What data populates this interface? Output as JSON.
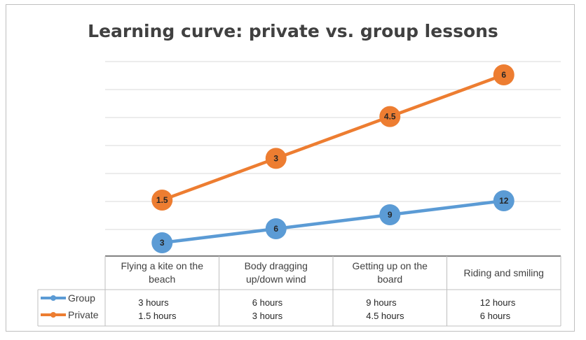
{
  "chart_data": {
    "type": "line",
    "title": "Learning curve: private vs. group lessons",
    "categories": [
      [
        "Flying a kite on the",
        "beach"
      ],
      [
        "Body dragging",
        "up/down wind"
      ],
      [
        "Getting up on the",
        "board"
      ],
      [
        "Riding and smiling",
        ""
      ]
    ],
    "series": [
      {
        "name": "Group",
        "color": "#5b9bd5",
        "values": [
          3,
          6,
          9,
          12
        ],
        "labels": [
          "3",
          "6",
          "9",
          "12"
        ],
        "table": [
          "3 hours",
          "6 hours",
          "9 hours",
          "12 hours"
        ]
      },
      {
        "name": "Private",
        "color": "#ed7d31",
        "values": [
          1.5,
          3,
          4.5,
          6
        ],
        "labels": [
          "1.5",
          "3",
          "4.5",
          "6"
        ],
        "table": [
          "1.5 hours",
          "3 hours",
          "4.5 hours",
          "6 hours"
        ]
      }
    ],
    "grid": true,
    "legend": "data-table"
  }
}
